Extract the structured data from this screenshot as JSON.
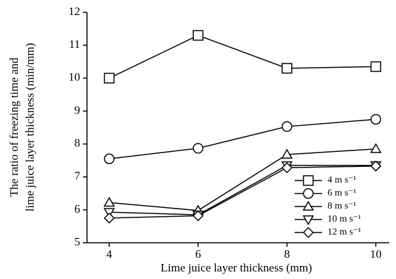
{
  "chart_data": {
    "type": "line",
    "xlabel": "Lime juice layer thickness (mm)",
    "ylabel": [
      "The ratio of freezing time and",
      "lime juice layer thickness (min/mm)"
    ],
    "x": [
      4,
      6,
      8,
      10
    ],
    "xlim": [
      3.5,
      10.3
    ],
    "xticks": [
      4,
      6,
      8,
      10
    ],
    "ylim": [
      5,
      12
    ],
    "yticks": [
      5,
      6,
      7,
      8,
      9,
      10,
      11,
      12
    ],
    "legend_position": "lower right",
    "series": [
      {
        "name": "4 m s⁻¹",
        "color": "#000000",
        "marker": "square",
        "values": [
          10.0,
          11.3,
          10.3,
          10.35
        ]
      },
      {
        "name": "6 m s⁻¹",
        "color": "#000000",
        "marker": "circle",
        "values": [
          7.55,
          7.87,
          8.53,
          8.75
        ]
      },
      {
        "name": "8 m s⁻¹",
        "color": "#000000",
        "marker": "triangle-up",
        "values": [
          6.22,
          5.98,
          7.68,
          7.85
        ]
      },
      {
        "name": "10 m s⁻¹",
        "color": "#000000",
        "marker": "triangle-down",
        "values": [
          5.93,
          5.85,
          7.35,
          7.35
        ]
      },
      {
        "name": "12 m s⁻¹",
        "color": "#000000",
        "marker": "diamond",
        "values": [
          5.75,
          5.82,
          7.28,
          7.33
        ]
      }
    ]
  }
}
